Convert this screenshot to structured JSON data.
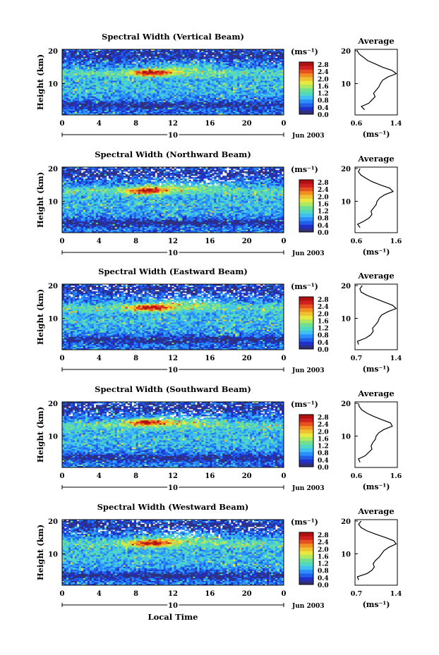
{
  "colorbar": {
    "unit": "(ms⁻¹)",
    "ticks": [
      "2.8",
      "2.4",
      "2.0",
      "1.6",
      "1.2",
      "0.8",
      "0.4",
      "0.0"
    ],
    "colors": [
      "#30307a",
      "#2030c8",
      "#2060e8",
      "#2a90ff",
      "#40c0f0",
      "#50d8c0",
      "#70e090",
      "#b0e860",
      "#e8e840",
      "#f0c030",
      "#f09020",
      "#e85020",
      "#d02020",
      "#b01010"
    ]
  },
  "x_axis": {
    "ticks": [
      "0",
      "4",
      "8",
      "12",
      "16",
      "20",
      "0"
    ],
    "date_label": "10",
    "month_label": "Jun 2003",
    "xlabel": "Local Time"
  },
  "y_axis": {
    "label": "Height (km)",
    "ticks": [
      "20",
      "10"
    ]
  },
  "panels": [
    {
      "title": "Spectral Width (Vertical Beam)",
      "avg_title": "Average",
      "avg_ticks": [
        "0.6",
        "1.4"
      ],
      "avg_unit": "(ms⁻¹)"
    },
    {
      "title": "Spectral Width (Northward Beam)",
      "avg_title": "Average",
      "avg_ticks": [
        "0.6",
        "1.6"
      ],
      "avg_unit": "(ms⁻¹)"
    },
    {
      "title": "Spectral Width (Eastward Beam)",
      "avg_title": "Average",
      "avg_ticks": [
        "0.7",
        "1.4"
      ],
      "avg_unit": "(ms⁻¹)"
    },
    {
      "title": "Spectral Width (Southward Beam)",
      "avg_title": "Average",
      "avg_ticks": [
        "0.6",
        "1.6"
      ],
      "avg_unit": "(ms⁻¹)"
    },
    {
      "title": "Spectral Width (Westward Beam)",
      "avg_title": "Average",
      "avg_ticks": [
        "0.7",
        "1.4"
      ],
      "avg_unit": "(ms⁻¹)"
    }
  ],
  "chart_data": [
    {
      "type": "heatmap",
      "title": "Spectral Width (Vertical Beam)",
      "xlabel": "",
      "ylabel": "Height (km)",
      "x_ticks": [
        "0",
        "4",
        "8",
        "12",
        "16",
        "20",
        "0"
      ],
      "y_ticks": [
        "10",
        "20"
      ],
      "colorbar_ticks": [
        0.0,
        0.4,
        0.8,
        1.2,
        1.6,
        2.0,
        2.4,
        2.8
      ],
      "colorbar_unit": "(ms⁻¹)",
      "peak": {
        "time_h": 9.5,
        "height_km": 13,
        "value": 2.8
      },
      "profile": {
        "title": "Average",
        "xlim": [
          0.6,
          1.4
        ],
        "x_ticks": [
          "0.6",
          "1.4"
        ],
        "ylim": [
          0,
          20
        ],
        "height_km": [
          2,
          3,
          4,
          5,
          6,
          7,
          8,
          9,
          10,
          11,
          12,
          13,
          14,
          15,
          16,
          17,
          18,
          19,
          20
        ],
        "values": [
          0.78,
          0.72,
          0.86,
          0.92,
          0.98,
          0.95,
          1.0,
          1.05,
          1.08,
          1.12,
          1.22,
          1.38,
          1.3,
          1.12,
          0.98,
          0.84,
          0.76,
          0.68,
          0.64
        ]
      }
    },
    {
      "type": "heatmap",
      "title": "Spectral Width (Northward Beam)",
      "xlabel": "",
      "ylabel": "Height (km)",
      "x_ticks": [
        "0",
        "4",
        "8",
        "12",
        "16",
        "20",
        "0"
      ],
      "y_ticks": [
        "10",
        "20"
      ],
      "colorbar_ticks": [
        0.0,
        0.4,
        0.8,
        1.2,
        1.6,
        2.0,
        2.4,
        2.8
      ],
      "colorbar_unit": "(ms⁻¹)",
      "peak": {
        "time_h": 9.0,
        "height_km": 13,
        "value": 2.8
      },
      "profile": {
        "title": "Average",
        "xlim": [
          0.6,
          1.6
        ],
        "x_ticks": [
          "0.6",
          "1.6"
        ],
        "ylim": [
          0,
          20
        ],
        "height_km": [
          2,
          3,
          4,
          5,
          6,
          7,
          8,
          9,
          10,
          11,
          12,
          13,
          14,
          15,
          16,
          17,
          18,
          19,
          20
        ],
        "values": [
          0.72,
          0.66,
          0.82,
          0.94,
          1.0,
          0.98,
          1.04,
          1.1,
          1.12,
          1.18,
          1.3,
          1.5,
          1.42,
          1.2,
          1.0,
          0.86,
          0.74,
          0.68,
          0.72
        ]
      }
    },
    {
      "type": "heatmap",
      "title": "Spectral Width (Eastward Beam)",
      "xlabel": "",
      "ylabel": "Height (km)",
      "x_ticks": [
        "0",
        "4",
        "8",
        "12",
        "16",
        "20",
        "0"
      ],
      "y_ticks": [
        "10",
        "20"
      ],
      "colorbar_ticks": [
        0.0,
        0.4,
        0.8,
        1.2,
        1.6,
        2.0,
        2.4,
        2.8
      ],
      "colorbar_unit": "(ms⁻¹)",
      "peak": {
        "time_h": 9.5,
        "height_km": 13,
        "value": 2.4
      },
      "profile": {
        "title": "Average",
        "xlim": [
          0.7,
          1.4
        ],
        "x_ticks": [
          "0.7",
          "1.4"
        ],
        "ylim": [
          0,
          20
        ],
        "height_km": [
          2,
          3,
          4,
          5,
          6,
          7,
          8,
          9,
          10,
          11,
          12,
          13,
          14,
          15,
          16,
          17,
          18,
          19,
          20
        ],
        "values": [
          0.76,
          0.74,
          0.88,
          0.96,
          1.0,
          0.99,
          1.04,
          1.08,
          1.1,
          1.14,
          1.24,
          1.38,
          1.32,
          1.18,
          1.04,
          0.9,
          0.8,
          0.78,
          0.82
        ]
      }
    },
    {
      "type": "heatmap",
      "title": "Spectral Width (Southward Beam)",
      "xlabel": "",
      "ylabel": "Height (km)",
      "x_ticks": [
        "0",
        "4",
        "8",
        "12",
        "16",
        "20",
        "0"
      ],
      "y_ticks": [
        "10",
        "20"
      ],
      "colorbar_ticks": [
        0.0,
        0.4,
        0.8,
        1.2,
        1.6,
        2.0,
        2.4,
        2.8
      ],
      "colorbar_unit": "(ms⁻¹)",
      "peak": {
        "time_h": 9.0,
        "height_km": 14,
        "value": 2.8
      },
      "profile": {
        "title": "Average",
        "xlim": [
          0.6,
          1.6
        ],
        "x_ticks": [
          "0.6",
          "1.6"
        ],
        "ylim": [
          0,
          20
        ],
        "height_km": [
          2,
          3,
          4,
          5,
          6,
          7,
          8,
          9,
          10,
          11,
          12,
          13,
          14,
          15,
          16,
          17,
          18,
          19,
          20
        ],
        "values": [
          0.72,
          0.68,
          0.84,
          0.92,
          1.0,
          0.98,
          1.02,
          1.08,
          1.1,
          1.16,
          1.28,
          1.48,
          1.44,
          1.24,
          1.04,
          0.88,
          0.76,
          0.7,
          0.68
        ]
      }
    },
    {
      "type": "heatmap",
      "title": "Spectral Width (Westward Beam)",
      "xlabel": "Local Time",
      "ylabel": "Height (km)",
      "x_ticks": [
        "0",
        "4",
        "8",
        "12",
        "16",
        "20",
        "0"
      ],
      "y_ticks": [
        "10",
        "20"
      ],
      "colorbar_ticks": [
        0.0,
        0.4,
        0.8,
        1.2,
        1.6,
        2.0,
        2.4,
        2.8
      ],
      "colorbar_unit": "(ms⁻¹)",
      "peak": {
        "time_h": 9.5,
        "height_km": 13,
        "value": 2.8
      },
      "profile": {
        "title": "Average",
        "xlim": [
          0.7,
          1.4
        ],
        "x_ticks": [
          "0.7",
          "1.4"
        ],
        "ylim": [
          0,
          20
        ],
        "height_km": [
          2,
          3,
          4,
          5,
          6,
          7,
          8,
          9,
          10,
          11,
          12,
          13,
          14,
          15,
          16,
          17,
          18,
          19,
          20
        ],
        "values": [
          0.76,
          0.74,
          0.9,
          0.98,
          1.02,
          1.0,
          1.04,
          1.1,
          1.14,
          1.18,
          1.26,
          1.38,
          1.34,
          1.2,
          1.04,
          0.9,
          0.8,
          0.76,
          0.8
        ]
      }
    }
  ]
}
